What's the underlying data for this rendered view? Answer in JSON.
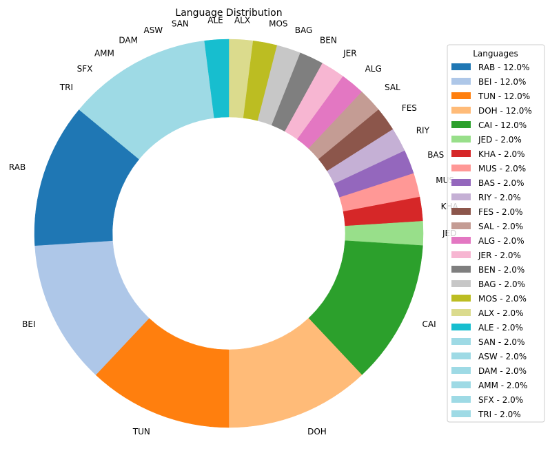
{
  "chart_data": {
    "type": "pie",
    "donut": true,
    "title": "Language Distribution",
    "legend_title": "Languages",
    "legend_position": "right",
    "start_angle_deg": 90,
    "direction": "clockwise",
    "slices": [
      {
        "label": "ALX",
        "value": 2.0,
        "color": "#dbdb8d"
      },
      {
        "label": "MOS",
        "value": 2.0,
        "color": "#bcbd22"
      },
      {
        "label": "BAG",
        "value": 2.0,
        "color": "#c7c7c7"
      },
      {
        "label": "BEN",
        "value": 2.0,
        "color": "#7f7f7f"
      },
      {
        "label": "JER",
        "value": 2.0,
        "color": "#f7b6d2"
      },
      {
        "label": "ALG",
        "value": 2.0,
        "color": "#e377c2"
      },
      {
        "label": "SAL",
        "value": 2.0,
        "color": "#c49c94"
      },
      {
        "label": "FES",
        "value": 2.0,
        "color": "#8c564b"
      },
      {
        "label": "RIY",
        "value": 2.0,
        "color": "#c5b0d5"
      },
      {
        "label": "BAS",
        "value": 2.0,
        "color": "#9467bd"
      },
      {
        "label": "MUS",
        "value": 2.0,
        "color": "#ff9896"
      },
      {
        "label": "KHA",
        "value": 2.0,
        "color": "#d62728"
      },
      {
        "label": "JED",
        "value": 2.0,
        "color": "#98df8a"
      },
      {
        "label": "CAI",
        "value": 12.0,
        "color": "#2ca02c"
      },
      {
        "label": "DOH",
        "value": 12.0,
        "color": "#ffbb78"
      },
      {
        "label": "TUN",
        "value": 12.0,
        "color": "#ff7f0e"
      },
      {
        "label": "BEI",
        "value": 12.0,
        "color": "#aec7e8"
      },
      {
        "label": "RAB",
        "value": 12.0,
        "color": "#1f77b4"
      },
      {
        "label": "TRI",
        "value": 2.0,
        "color": "#9edae5"
      },
      {
        "label": "SFX",
        "value": 2.0,
        "color": "#9edae5"
      },
      {
        "label": "AMM",
        "value": 2.0,
        "color": "#9edae5"
      },
      {
        "label": "DAM",
        "value": 2.0,
        "color": "#9edae5"
      },
      {
        "label": "ASW",
        "value": 2.0,
        "color": "#9edae5"
      },
      {
        "label": "SAN",
        "value": 2.0,
        "color": "#9edae5"
      },
      {
        "label": "ALE",
        "value": 2.0,
        "color": "#17becf"
      }
    ],
    "legend": [
      {
        "label": "RAB - 12.0%",
        "color": "#1f77b4"
      },
      {
        "label": "BEI - 12.0%",
        "color": "#aec7e8"
      },
      {
        "label": "TUN - 12.0%",
        "color": "#ff7f0e"
      },
      {
        "label": "DOH - 12.0%",
        "color": "#ffbb78"
      },
      {
        "label": "CAI - 12.0%",
        "color": "#2ca02c"
      },
      {
        "label": "JED - 2.0%",
        "color": "#98df8a"
      },
      {
        "label": "KHA - 2.0%",
        "color": "#d62728"
      },
      {
        "label": "MUS - 2.0%",
        "color": "#ff9896"
      },
      {
        "label": "BAS - 2.0%",
        "color": "#9467bd"
      },
      {
        "label": "RIY - 2.0%",
        "color": "#c5b0d5"
      },
      {
        "label": "FES - 2.0%",
        "color": "#8c564b"
      },
      {
        "label": "SAL - 2.0%",
        "color": "#c49c94"
      },
      {
        "label": "ALG - 2.0%",
        "color": "#e377c2"
      },
      {
        "label": "JER - 2.0%",
        "color": "#f7b6d2"
      },
      {
        "label": "BEN - 2.0%",
        "color": "#7f7f7f"
      },
      {
        "label": "BAG - 2.0%",
        "color": "#c7c7c7"
      },
      {
        "label": "MOS - 2.0%",
        "color": "#bcbd22"
      },
      {
        "label": "ALX - 2.0%",
        "color": "#dbdb8d"
      },
      {
        "label": "ALE - 2.0%",
        "color": "#17becf"
      },
      {
        "label": "SAN - 2.0%",
        "color": "#9edae5"
      },
      {
        "label": "ASW - 2.0%",
        "color": "#9edae5"
      },
      {
        "label": "DAM - 2.0%",
        "color": "#9edae5"
      },
      {
        "label": "AMM - 2.0%",
        "color": "#9edae5"
      },
      {
        "label": "SFX - 2.0%",
        "color": "#9edae5"
      },
      {
        "label": "TRI - 2.0%",
        "color": "#9edae5"
      }
    ]
  }
}
